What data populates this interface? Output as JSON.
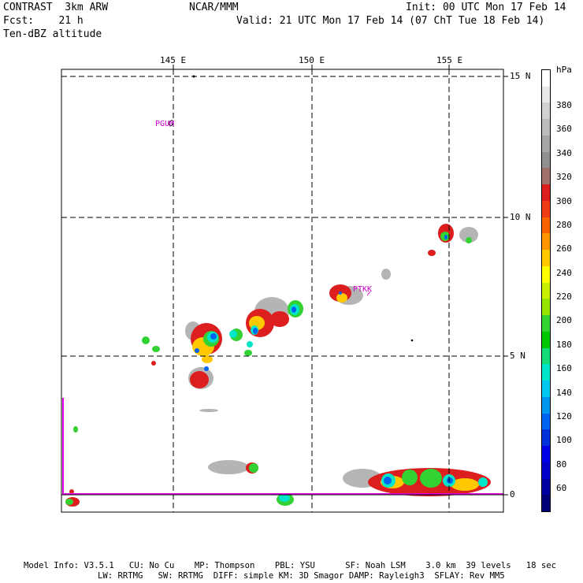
{
  "header": {
    "model": "CONTRAST  3km ARW",
    "org": "NCAR/MMM",
    "init": "Init: 00 UTC Mon 17 Feb 14",
    "fcst": "Fcst:    21 h",
    "valid": "Valid: 21 UTC Mon 17 Feb 14 (07 ChT Tue 18 Feb 14)",
    "field": "Ten-dBZ altitude"
  },
  "map": {
    "lon_labels": [
      "145 E",
      "150 E",
      "155 E"
    ],
    "lat_labels": [
      "15 N",
      "10 N",
      "5 N",
      "0"
    ],
    "stations": [
      "PGUM",
      "PTKK"
    ]
  },
  "colorbar": {
    "unit": "hPa",
    "levels": [
      "380",
      "360",
      "340",
      "320",
      "300",
      "280",
      "260",
      "240",
      "220",
      "200",
      "180",
      "160",
      "140",
      "120",
      "100",
      "80",
      "60"
    ],
    "colors": [
      "#ffffff",
      "#e8e8e8",
      "#d2d2d2",
      "#bcbcbc",
      "#a6a6a6",
      "#909090",
      "#a0706a",
      "#dc1e1e",
      "#f03c14",
      "#f86400",
      "#ff9600",
      "#ffc800",
      "#ffff00",
      "#c8f000",
      "#96e600",
      "#32d232",
      "#00c800",
      "#14dc78",
      "#00e6c8",
      "#00c8f0",
      "#0096f0",
      "#0064f0",
      "#0032dc",
      "#0000e6",
      "#0000c8",
      "#0000a0",
      "#000078"
    ]
  },
  "footer": {
    "line1": "Model Info: V3.5.1   CU: No Cu    MP: Thompson    PBL: YSU      SF: Noah LSM    3.0 km  39 levels   18 sec",
    "line2": "LW: RRTMG   SW: RRTMG  DIFF: simple KM: 3D Smagor DAMP: Rayleigh3  SFLAY: Rev MM5"
  }
}
